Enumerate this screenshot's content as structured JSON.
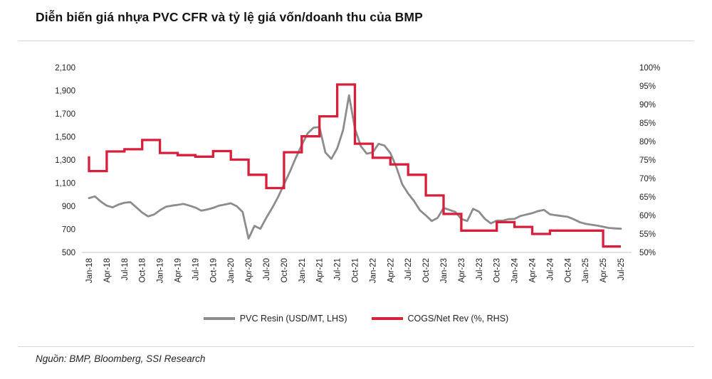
{
  "page": {
    "title": "Diễn biến giá nhựa PVC CFR và tỷ lệ giá vốn/doanh thu của BMP",
    "source_note": "Nguồn: BMP, Bloomberg, SSI Research"
  },
  "legend": {
    "items": [
      {
        "label": "PVC Resin (USD/MT, LHS)",
        "color": "#8c8c8c"
      },
      {
        "label": "COGS/Net Rev (%, RHS)",
        "color": "#d91e3c"
      }
    ]
  },
  "chart_data": {
    "type": "line",
    "grid": "off",
    "legend_position": "bottom-center",
    "x_axis": {
      "start_month": "Jan-18",
      "end_month": "Jul-25",
      "tick_interval": "quarterly",
      "tick_labels": [
        "Jan-18",
        "Apr-18",
        "Jul-18",
        "Oct-18",
        "Jan-19",
        "Apr-19",
        "Jul-19",
        "Oct-19",
        "Jan-20",
        "Apr-20",
        "Jul-20",
        "Oct-20",
        "Jan-21",
        "Apr-21",
        "Jul-21",
        "Oct-21",
        "Jan-22",
        "Apr-22",
        "Jul-22",
        "Oct-22",
        "Jan-23",
        "Apr-23",
        "Jul-23",
        "Oct-23",
        "Jan-24",
        "Apr-24",
        "Jul-24",
        "Oct-24",
        "Jan-25",
        "Apr-25",
        "Jul-25"
      ]
    },
    "left_axis": {
      "min": 500,
      "max": 2100,
      "step": 200,
      "tick_labels": [
        "2,100",
        "1,900",
        "1,700",
        "1,500",
        "1,300",
        "1,100",
        "900",
        "700",
        "500"
      ]
    },
    "right_axis": {
      "min": 50,
      "max": 100,
      "step": 5,
      "tick_labels": [
        "100%",
        "95%",
        "90%",
        "85%",
        "80%",
        "75%",
        "70%",
        "65%",
        "60%",
        "55%",
        "50%"
      ]
    },
    "series": [
      {
        "name": "PVC Resin (USD/MT, LHS)",
        "axis": "left",
        "color": "#8c8c8c",
        "frequency": "monthly",
        "monthly_values": [
          970,
          985,
          940,
          905,
          890,
          915,
          930,
          935,
          890,
          845,
          812,
          828,
          865,
          895,
          905,
          912,
          920,
          905,
          888,
          862,
          872,
          885,
          905,
          915,
          925,
          900,
          850,
          620,
          730,
          705,
          800,
          885,
          980,
          1090,
          1200,
          1320,
          1430,
          1530,
          1580,
          1585,
          1365,
          1310,
          1400,
          1560,
          1860,
          1570,
          1420,
          1355,
          1365,
          1440,
          1425,
          1360,
          1240,
          1090,
          1010,
          945,
          865,
          820,
          772,
          800,
          885,
          868,
          850,
          790,
          772,
          878,
          852,
          790,
          752,
          775,
          775,
          788,
          790,
          815,
          828,
          840,
          858,
          868,
          830,
          822,
          815,
          808,
          788,
          762,
          748,
          740,
          732,
          722,
          712,
          708,
          705
        ]
      },
      {
        "name": "COGS/Net Rev (%, RHS)",
        "axis": "right",
        "color": "#d91e3c",
        "frequency": "quarterly-step",
        "start_value": 76.0,
        "quarterly_steps": [
          {
            "label": "Q1-18",
            "value": 72.0
          },
          {
            "label": "Q2-18",
            "value": 77.3
          },
          {
            "label": "Q3-18",
            "value": 77.9
          },
          {
            "label": "Q4-18",
            "value": 80.4
          },
          {
            "label": "Q1-19",
            "value": 76.9
          },
          {
            "label": "Q2-19",
            "value": 76.3
          },
          {
            "label": "Q3-19",
            "value": 75.9
          },
          {
            "label": "Q4-19",
            "value": 77.4
          },
          {
            "label": "Q1-20",
            "value": 75.1
          },
          {
            "label": "Q2-20",
            "value": 71.0
          },
          {
            "label": "Q3-20",
            "value": 67.4
          },
          {
            "label": "Q4-20",
            "value": 77.1
          },
          {
            "label": "Q1-21",
            "value": 81.4
          },
          {
            "label": "Q2-21",
            "value": 86.8
          },
          {
            "label": "Q3-21",
            "value": 95.4
          },
          {
            "label": "Q4-21",
            "value": 79.4
          },
          {
            "label": "Q1-22",
            "value": 75.6
          },
          {
            "label": "Q2-22",
            "value": 73.8
          },
          {
            "label": "Q3-22",
            "value": 71.0
          },
          {
            "label": "Q4-22",
            "value": 65.4
          },
          {
            "label": "Q1-23",
            "value": 60.4
          },
          {
            "label": "Q2-23",
            "value": 55.9
          },
          {
            "label": "Q3-23",
            "value": 55.9
          },
          {
            "label": "Q4-23",
            "value": 58.2
          },
          {
            "label": "Q1-24",
            "value": 56.9
          },
          {
            "label": "Q2-24",
            "value": 55.0
          },
          {
            "label": "Q3-24",
            "value": 55.9
          },
          {
            "label": "Q4-24",
            "value": 55.9
          },
          {
            "label": "Q1-25",
            "value": 55.9
          },
          {
            "label": "Q2-25",
            "value": 51.6
          }
        ]
      }
    ]
  }
}
